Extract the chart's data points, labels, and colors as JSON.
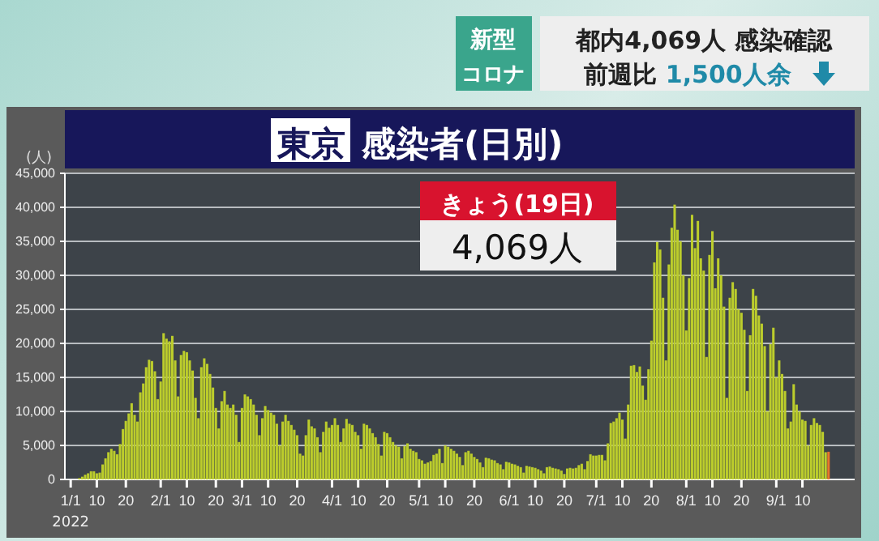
{
  "chart_data": {
    "type": "bar",
    "title": "東京 感染者(日別)",
    "ylabel": "(人)",
    "annotations": [
      "新型",
      "コロナ",
      "都内4,069人 感染確認",
      "前週比 1,500人余",
      "きょう(19日)",
      "4,069人",
      "2022"
    ],
    "x": [
      "2022-01-04",
      "2022-01-05",
      "2022-01-06",
      "2022-01-07",
      "2022-01-08",
      "2022-01-09",
      "2022-01-10",
      "2022-01-11",
      "2022-01-12",
      "2022-01-13",
      "2022-01-14",
      "2022-01-15",
      "2022-01-16",
      "2022-01-17",
      "2022-01-18",
      "2022-01-19",
      "2022-01-20",
      "2022-01-21",
      "2022-01-22",
      "2022-01-23",
      "2022-01-24",
      "2022-01-25",
      "2022-01-26",
      "2022-01-27",
      "2022-01-28",
      "2022-01-29",
      "2022-01-30",
      "2022-01-31",
      "2022-02-01",
      "2022-02-02",
      "2022-02-03",
      "2022-02-04",
      "2022-02-05",
      "2022-02-06",
      "2022-02-07",
      "2022-02-08",
      "2022-02-09",
      "2022-02-10",
      "2022-02-11",
      "2022-02-12",
      "2022-02-13",
      "2022-02-14",
      "2022-02-15",
      "2022-02-16",
      "2022-02-17",
      "2022-02-18",
      "2022-02-19",
      "2022-02-20",
      "2022-02-21",
      "2022-02-22",
      "2022-02-23",
      "2022-02-24",
      "2022-02-25",
      "2022-02-26",
      "2022-02-27",
      "2022-02-28",
      "2022-03-01",
      "2022-03-02",
      "2022-03-03",
      "2022-03-04",
      "2022-03-05",
      "2022-03-06",
      "2022-03-07",
      "2022-03-08",
      "2022-03-09",
      "2022-03-10",
      "2022-03-11",
      "2022-03-12",
      "2022-03-13",
      "2022-03-14",
      "2022-03-15",
      "2022-03-16",
      "2022-03-17",
      "2022-03-18",
      "2022-03-19",
      "2022-03-20",
      "2022-03-21",
      "2022-03-22",
      "2022-03-23",
      "2022-03-24",
      "2022-03-25",
      "2022-03-26",
      "2022-03-27",
      "2022-03-28",
      "2022-03-29",
      "2022-03-30",
      "2022-03-31",
      "2022-04-01",
      "2022-04-02",
      "2022-04-03",
      "2022-04-04",
      "2022-04-05",
      "2022-04-06",
      "2022-04-07",
      "2022-04-08",
      "2022-04-09",
      "2022-04-10",
      "2022-04-11",
      "2022-04-12",
      "2022-04-13",
      "2022-04-14",
      "2022-04-15",
      "2022-04-16",
      "2022-04-17",
      "2022-04-18",
      "2022-04-19",
      "2022-04-20",
      "2022-04-21",
      "2022-04-22",
      "2022-04-23",
      "2022-04-24",
      "2022-04-25",
      "2022-04-26",
      "2022-04-27",
      "2022-04-28",
      "2022-04-29",
      "2022-04-30",
      "2022-05-01",
      "2022-05-02",
      "2022-05-03",
      "2022-05-04",
      "2022-05-05",
      "2022-05-06",
      "2022-05-07",
      "2022-05-08",
      "2022-05-09",
      "2022-05-10",
      "2022-05-11",
      "2022-05-12",
      "2022-05-13",
      "2022-05-14",
      "2022-05-15",
      "2022-05-16",
      "2022-05-17",
      "2022-05-18",
      "2022-05-19",
      "2022-05-20",
      "2022-05-21",
      "2022-05-22",
      "2022-05-23",
      "2022-05-24",
      "2022-05-25",
      "2022-05-26",
      "2022-05-27",
      "2022-05-28",
      "2022-05-29",
      "2022-05-30",
      "2022-05-31",
      "2022-06-01",
      "2022-06-02",
      "2022-06-03",
      "2022-06-04",
      "2022-06-05",
      "2022-06-06",
      "2022-06-07",
      "2022-06-08",
      "2022-06-09",
      "2022-06-10",
      "2022-06-11",
      "2022-06-12",
      "2022-06-13",
      "2022-06-14",
      "2022-06-15",
      "2022-06-16",
      "2022-06-17",
      "2022-06-18",
      "2022-06-19",
      "2022-06-20",
      "2022-06-21",
      "2022-06-22",
      "2022-06-23",
      "2022-06-24",
      "2022-06-25",
      "2022-06-26",
      "2022-06-27",
      "2022-06-28",
      "2022-06-29",
      "2022-06-30",
      "2022-07-01",
      "2022-07-02",
      "2022-07-03",
      "2022-07-04",
      "2022-07-05",
      "2022-07-06",
      "2022-07-07",
      "2022-07-08",
      "2022-07-09",
      "2022-07-10",
      "2022-07-11",
      "2022-07-12",
      "2022-07-13",
      "2022-07-14",
      "2022-07-15",
      "2022-07-16",
      "2022-07-17",
      "2022-07-18",
      "2022-07-19",
      "2022-07-20",
      "2022-07-21",
      "2022-07-22",
      "2022-07-23",
      "2022-07-24",
      "2022-07-25",
      "2022-07-26",
      "2022-07-27",
      "2022-07-28",
      "2022-07-29",
      "2022-07-30",
      "2022-07-31",
      "2022-08-01",
      "2022-08-02",
      "2022-08-03",
      "2022-08-04",
      "2022-08-05",
      "2022-08-06",
      "2022-08-07",
      "2022-08-08",
      "2022-08-09",
      "2022-08-10",
      "2022-08-11",
      "2022-08-12",
      "2022-08-13",
      "2022-08-14",
      "2022-08-15",
      "2022-08-16",
      "2022-08-17",
      "2022-08-18",
      "2022-08-19",
      "2022-08-20",
      "2022-08-21",
      "2022-08-22",
      "2022-08-23",
      "2022-08-24",
      "2022-08-25",
      "2022-08-26",
      "2022-08-27",
      "2022-08-28",
      "2022-08-29",
      "2022-08-30",
      "2022-08-31",
      "2022-09-01",
      "2022-09-02",
      "2022-09-03",
      "2022-09-04",
      "2022-09-05",
      "2022-09-06",
      "2022-09-07",
      "2022-09-08",
      "2022-09-09",
      "2022-09-10",
      "2022-09-11",
      "2022-09-12",
      "2022-09-13",
      "2022-09-14",
      "2022-09-15",
      "2022-09-16",
      "2022-09-17",
      "2022-09-18"
    ],
    "series": [
      {
        "color": "#bccd2c",
        "values": [
          200,
          400,
          700,
          900,
          1200,
          1200,
          900,
          1000,
          2200,
          3100,
          4000,
          4500,
          4200,
          3700,
          5200,
          7400,
          8600,
          9700,
          11200,
          9500,
          8500,
          12800,
          14100,
          16500,
          17600,
          17400,
          15900,
          11800,
          14400,
          21500,
          20700,
          20300,
          21100,
          17500,
          12200,
          18300,
          18900,
          18700,
          17500,
          16000,
          12000,
          9000,
          16500,
          17800,
          17000,
          15500,
          13500,
          10500,
          7500,
          11500,
          13000,
          11000,
          10500,
          11000,
          9500,
          5500,
          10500,
          12500,
          12200,
          11800,
          11000,
          9500,
          6500,
          9000,
          10800,
          10200,
          9800,
          9500,
          8200,
          5000,
          8500,
          9500,
          8600,
          8000,
          7300,
          6500,
          3800,
          3500,
          6500,
          8800,
          7800,
          7500,
          6200,
          4000,
          7000,
          8500,
          7600,
          8000,
          9000,
          8000,
          5500,
          7500,
          8900,
          8200,
          8000,
          7000,
          6500,
          4500,
          8200,
          8000,
          7500,
          6800,
          6200,
          5200,
          3500,
          7000,
          6800,
          6200,
          5500,
          5000,
          4800,
          3100,
          4900,
          5300,
          4500,
          4200,
          4000,
          3000,
          2800,
          2300,
          2500,
          2700,
          3600,
          3800,
          4500,
          2400,
          5000,
          4800,
          4500,
          4200,
          3800,
          3300,
          2100,
          4000,
          4200,
          3800,
          3300,
          3000,
          2500,
          1800,
          3200,
          3100,
          2900,
          2800,
          2400,
          2200,
          1500,
          2600,
          2500,
          2300,
          2200,
          2000,
          1800,
          1000,
          2000,
          1900,
          1800,
          1700,
          1500,
          1300,
          900,
          1800,
          1900,
          1700,
          1600,
          1500,
          1300,
          800,
          1600,
          1700,
          1600,
          1700,
          2100,
          2300,
          1500,
          2700,
          3700,
          3500,
          3500,
          3600,
          3600,
          2800,
          5300,
          8300,
          8500,
          9000,
          9800,
          8800,
          6000,
          11000,
          16700,
          16800,
          15800,
          16600,
          13800,
          11700,
          16200,
          20400,
          31900,
          34900,
          33800,
          26700,
          17500,
          31600,
          37000,
          40400,
          36700,
          35000,
          30000,
          21900,
          29600,
          38900,
          34000,
          38000,
          32500,
          30700,
          18000,
          33000,
          36500,
          28100,
          32500,
          30000,
          25400,
          12000,
          26700,
          29000,
          28000,
          25000,
          24500,
          22000,
          13000,
          21200,
          28000,
          27000,
          24100,
          22900,
          19600,
          10000,
          19900,
          22300,
          15000,
          17500,
          15500,
          13000,
          7500,
          8500,
          14000,
          11000,
          10000,
          8800,
          8600,
          5000,
          8000,
          9000,
          8300,
          8000,
          7000,
          4000
        ]
      },
      {
        "color": "#e8752a",
        "x": [
          "2022-09-19"
        ],
        "values": [
          4069
        ]
      }
    ],
    "xlim": [
      "2021-12-30",
      "2022-09-28"
    ],
    "xticks": [
      {
        "value": "2022-01-01",
        "label": "1/1"
      },
      {
        "value": "2022-01-10",
        "label": "10"
      },
      {
        "value": "2022-01-20",
        "label": "20"
      },
      {
        "value": "2022-02-01",
        "label": "2/1"
      },
      {
        "value": "2022-02-10",
        "label": "10"
      },
      {
        "value": "2022-02-20",
        "label": "20"
      },
      {
        "value": "2022-03-01",
        "label": "3/1"
      },
      {
        "value": "2022-03-10",
        "label": "10"
      },
      {
        "value": "2022-03-20",
        "label": "20"
      },
      {
        "value": "2022-04-01",
        "label": "4/1"
      },
      {
        "value": "2022-04-10",
        "label": "10"
      },
      {
        "value": "2022-04-20",
        "label": "20"
      },
      {
        "value": "2022-05-01",
        "label": "5/1"
      },
      {
        "value": "2022-05-10",
        "label": "10"
      },
      {
        "value": "2022-05-20",
        "label": "20"
      },
      {
        "value": "2022-06-01",
        "label": "6/1"
      },
      {
        "value": "2022-06-10",
        "label": "10"
      },
      {
        "value": "2022-06-20",
        "label": "20"
      },
      {
        "value": "2022-07-01",
        "label": "7/1"
      },
      {
        "value": "2022-07-10",
        "label": "10"
      },
      {
        "value": "2022-07-20",
        "label": "20"
      },
      {
        "value": "2022-08-01",
        "label": "8/1"
      },
      {
        "value": "2022-08-10",
        "label": "10"
      },
      {
        "value": "2022-08-20",
        "label": "20"
      },
      {
        "value": "2022-09-01",
        "label": "9/1"
      },
      {
        "value": "2022-09-10",
        "label": "10"
      }
    ],
    "ylim": [
      0,
      45000
    ],
    "yticks": [
      0,
      {
        "value": 5000,
        "label": "5,000"
      },
      {
        "value": 10000,
        "label": "10,000"
      },
      {
        "value": 15000,
        "label": "15,000"
      },
      {
        "value": 20000,
        "label": "20,000"
      },
      {
        "value": 25000,
        "label": "25,000"
      },
      {
        "value": 30000,
        "label": "30,000"
      },
      {
        "value": 35000,
        "label": "35,000"
      },
      {
        "value": 40000,
        "label": "40,000"
      },
      {
        "value": 45000,
        "label": "45,000"
      }
    ],
    "grid": "y"
  }
}
